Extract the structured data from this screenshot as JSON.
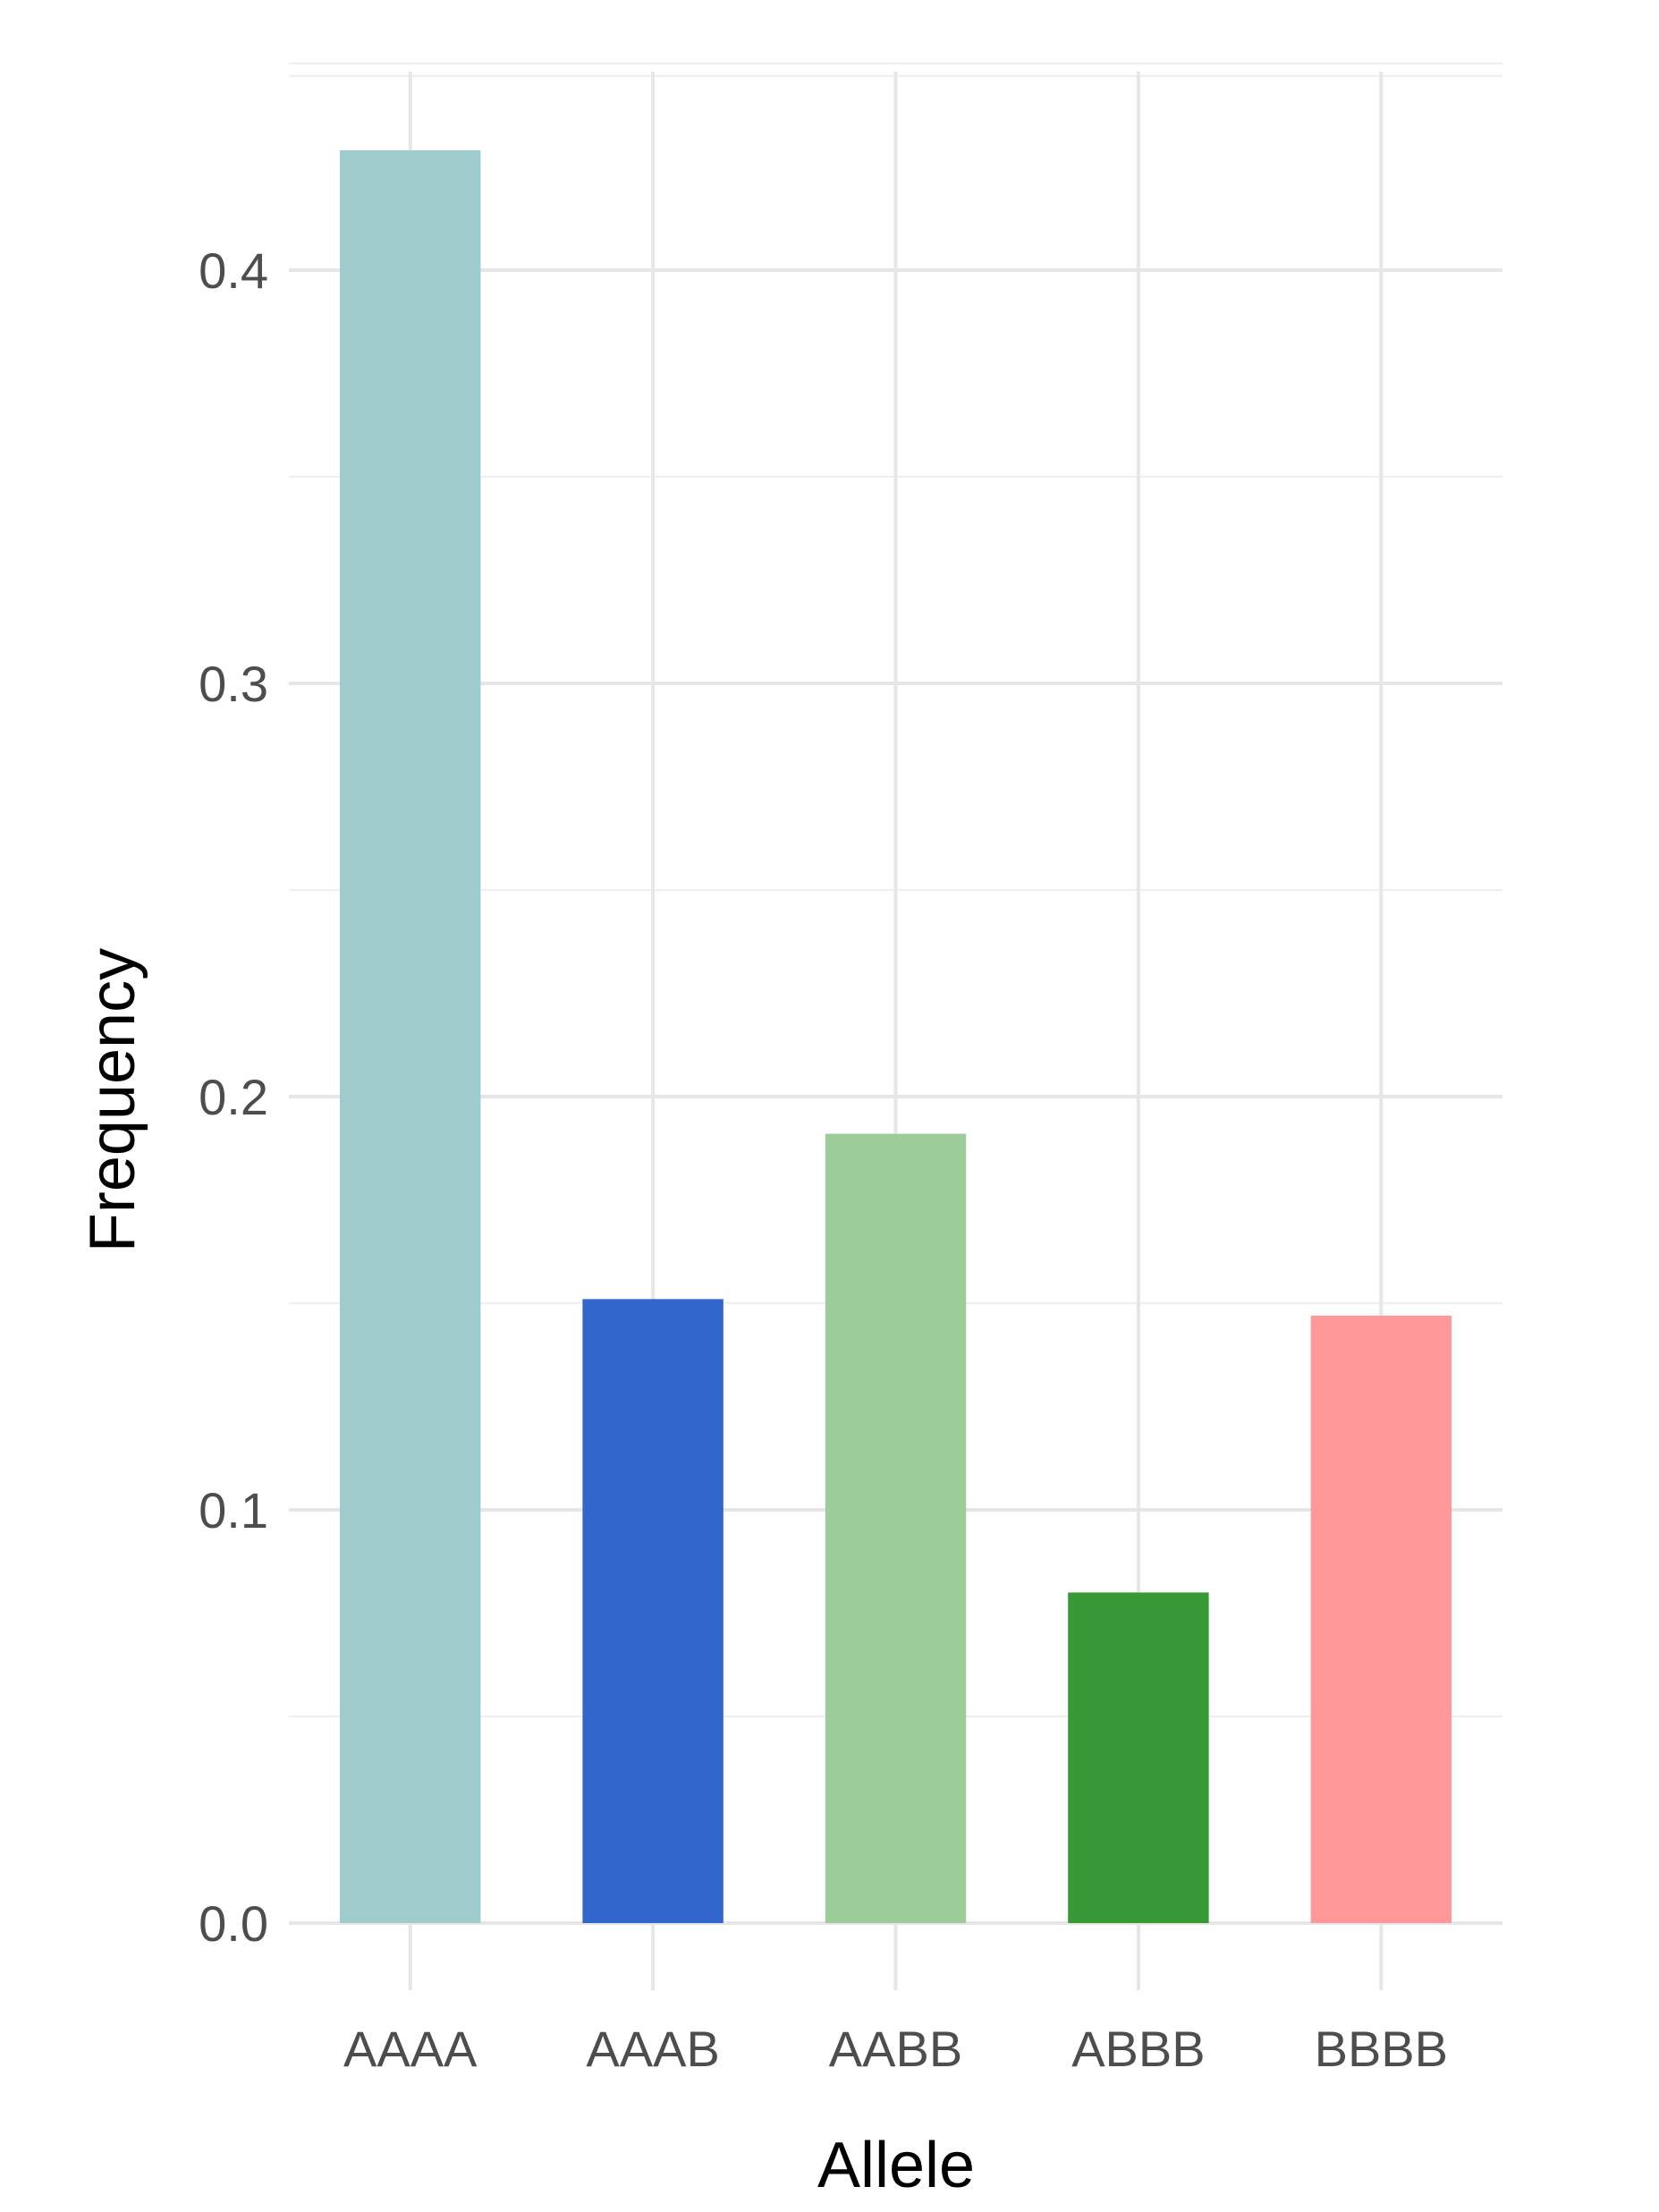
{
  "chart_data": {
    "type": "bar",
    "xlabel": "Allele",
    "ylabel": "Frequency",
    "categories": [
      "AAAA",
      "AAAB",
      "AABB",
      "ABBB",
      "BBBB"
    ],
    "values": [
      0.429,
      0.151,
      0.191,
      0.08,
      0.147
    ],
    "colors": [
      "#9ecbcc",
      "#3366cc",
      "#9ccc9a",
      "#379936",
      "#ff9999"
    ],
    "ylim": [
      0,
      0.46
    ],
    "yticks": [
      0.0,
      0.1,
      0.2,
      0.3,
      0.4
    ],
    "ytick_labels": [
      "0.0",
      "0.1",
      "0.2",
      "0.3",
      "0.4"
    ],
    "grid": true,
    "legend": "none"
  }
}
